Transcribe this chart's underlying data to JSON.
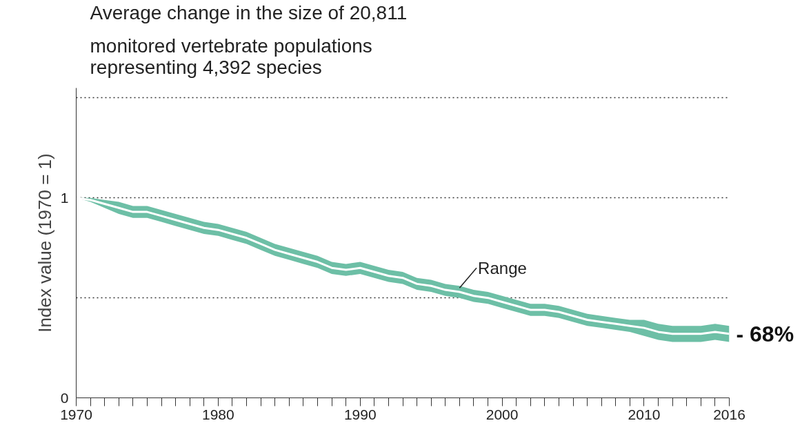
{
  "chart_data": {
    "type": "line",
    "title": "Average change in the size of 20,811",
    "subtitle": "monitored vertebrate populations\nrepresenting 4,392 species",
    "ylabel": "Index value (1970 = 1)",
    "x": [
      1970,
      1971,
      1972,
      1973,
      1974,
      1975,
      1976,
      1977,
      1978,
      1979,
      1980,
      1981,
      1982,
      1983,
      1984,
      1985,
      1986,
      1987,
      1988,
      1989,
      1990,
      1991,
      1992,
      1993,
      1994,
      1995,
      1996,
      1997,
      1998,
      1999,
      2000,
      2001,
      2002,
      2003,
      2004,
      2005,
      2006,
      2007,
      2008,
      2009,
      2010,
      2011,
      2012,
      2013,
      2014,
      2015,
      2016
    ],
    "series": [
      {
        "color": "#ffffff",
        "values": [
          1.0,
          0.99,
          0.97,
          0.95,
          0.93,
          0.93,
          0.91,
          0.89,
          0.87,
          0.85,
          0.84,
          0.82,
          0.8,
          0.77,
          0.74,
          0.72,
          0.7,
          0.68,
          0.65,
          0.64,
          0.65,
          0.63,
          0.61,
          0.6,
          0.57,
          0.56,
          0.54,
          0.53,
          0.51,
          0.5,
          0.48,
          0.46,
          0.44,
          0.44,
          0.43,
          0.41,
          0.39,
          0.38,
          0.37,
          0.36,
          0.35,
          0.33,
          0.32,
          0.32,
          0.32,
          0.33,
          0.32
        ],
        "lower": [
          1.0,
          0.98,
          0.95,
          0.92,
          0.9,
          0.9,
          0.88,
          0.86,
          0.84,
          0.82,
          0.81,
          0.79,
          0.77,
          0.74,
          0.71,
          0.69,
          0.67,
          0.65,
          0.62,
          0.61,
          0.62,
          0.6,
          0.58,
          0.57,
          0.54,
          0.53,
          0.51,
          0.5,
          0.48,
          0.47,
          0.45,
          0.43,
          0.41,
          0.41,
          0.4,
          0.38,
          0.36,
          0.35,
          0.34,
          0.33,
          0.31,
          0.29,
          0.28,
          0.28,
          0.28,
          0.29,
          0.28
        ],
        "upper": [
          1.0,
          1.0,
          0.99,
          0.98,
          0.96,
          0.96,
          0.94,
          0.92,
          0.9,
          0.88,
          0.87,
          0.85,
          0.83,
          0.8,
          0.77,
          0.75,
          0.73,
          0.71,
          0.68,
          0.67,
          0.68,
          0.66,
          0.64,
          0.63,
          0.6,
          0.59,
          0.57,
          0.56,
          0.54,
          0.53,
          0.51,
          0.49,
          0.47,
          0.47,
          0.46,
          0.44,
          0.42,
          0.41,
          0.4,
          0.39,
          0.39,
          0.37,
          0.36,
          0.36,
          0.36,
          0.37,
          0.36
        ]
      }
    ],
    "annotations": [
      {
        "text": "Range",
        "x": 1997,
        "y": 0.55
      },
      {
        "text": "- 68%",
        "x": 2016,
        "y": 0.32
      }
    ],
    "xlim": [
      1970,
      2016
    ],
    "ylim": [
      0,
      1.55
    ],
    "xticks": [
      1970,
      {
        "value": 1971,
        "label": null
      },
      {
        "value": 1972,
        "label": null
      },
      {
        "value": 1973,
        "label": null
      },
      {
        "value": 1974,
        "label": null
      },
      {
        "value": 1975,
        "label": null
      },
      {
        "value": 1976,
        "label": null
      },
      {
        "value": 1977,
        "label": null
      },
      {
        "value": 1978,
        "label": null
      },
      {
        "value": 1979,
        "label": null
      },
      1980,
      {
        "value": 1981,
        "label": null
      },
      {
        "value": 1982,
        "label": null
      },
      {
        "value": 1983,
        "label": null
      },
      {
        "value": 1984,
        "label": null
      },
      {
        "value": 1985,
        "label": null
      },
      {
        "value": 1986,
        "label": null
      },
      {
        "value": 1987,
        "label": null
      },
      {
        "value": 1988,
        "label": null
      },
      {
        "value": 1989,
        "label": null
      },
      1990,
      {
        "value": 1991,
        "label": null
      },
      {
        "value": 1992,
        "label": null
      },
      {
        "value": 1993,
        "label": null
      },
      {
        "value": 1994,
        "label": null
      },
      {
        "value": 1995,
        "label": null
      },
      {
        "value": 1996,
        "label": null
      },
      {
        "value": 1997,
        "label": null
      },
      {
        "value": 1998,
        "label": null
      },
      {
        "value": 1999,
        "label": null
      },
      2000,
      {
        "value": 2001,
        "label": null
      },
      {
        "value": 2002,
        "label": null
      },
      {
        "value": 2003,
        "label": null
      },
      {
        "value": 2004,
        "label": null
      },
      {
        "value": 2005,
        "label": null
      },
      {
        "value": 2006,
        "label": null
      },
      {
        "value": 2007,
        "label": null
      },
      {
        "value": 2008,
        "label": null
      },
      {
        "value": 2009,
        "label": null
      },
      2010,
      {
        "value": 2011,
        "label": null
      },
      {
        "value": 2012,
        "label": null
      },
      {
        "value": 2013,
        "label": null
      },
      {
        "value": 2014,
        "label": null
      },
      {
        "value": 2015,
        "label": null
      },
      2016
    ],
    "yticks": [
      0,
      {
        "value": 0.5,
        "label": null
      },
      1,
      {
        "value": 1.5,
        "label": null
      }
    ],
    "grid": "y"
  }
}
